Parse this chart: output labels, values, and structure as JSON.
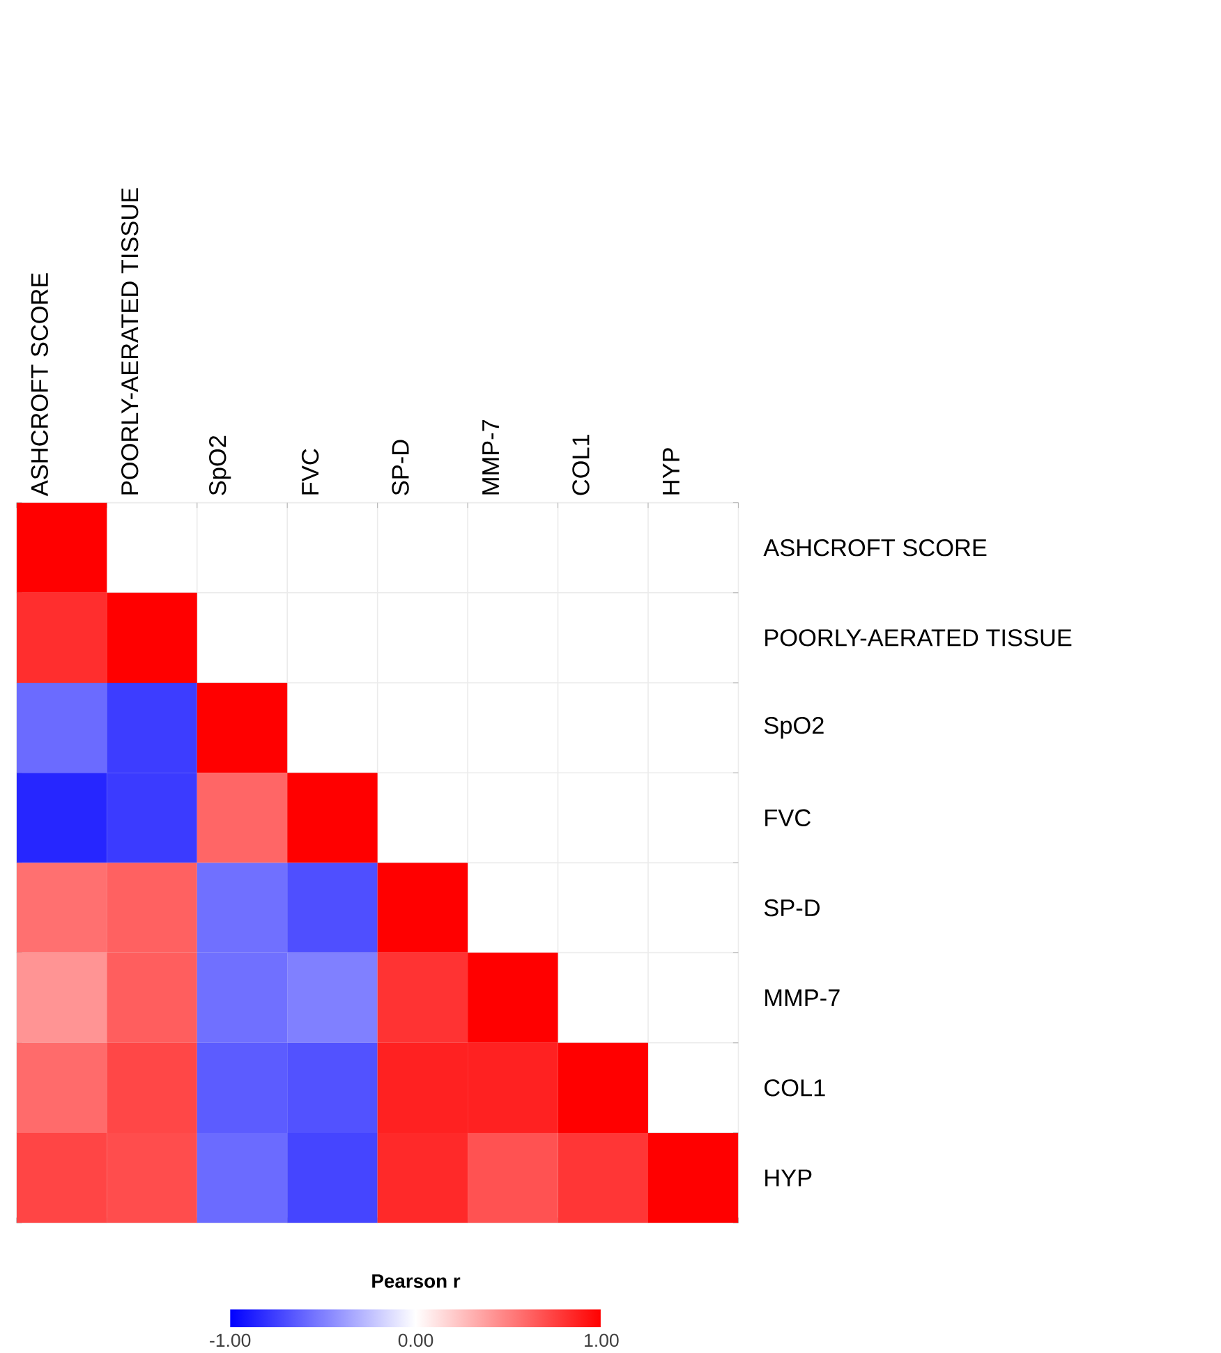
{
  "chart_data": {
    "type": "heatmap",
    "categories": [
      "ASHCROFT SCORE",
      "POORLY-AERATED TISSUE",
      "SpO2",
      "FVC",
      "SP-D",
      "MMP-7",
      "COL1",
      "HYP"
    ],
    "y_categories": [
      "ASHCROFT SCORE",
      "POORLY-AERATED TISSUE",
      "SpO2",
      "FVC",
      "SP-D",
      "MMP-7",
      "COL1",
      "HYP"
    ],
    "cells": [
      [
        1,
        null,
        null,
        null,
        null,
        null,
        null,
        null
      ],
      [
        0.82,
        1,
        null,
        null,
        null,
        null,
        null,
        null
      ],
      [
        -0.58,
        -0.76,
        1,
        null,
        null,
        null,
        null,
        null
      ],
      [
        -0.85,
        -0.77,
        0.6,
        1,
        null,
        null,
        null,
        null
      ],
      [
        0.56,
        0.62,
        -0.56,
        -0.69,
        1,
        null,
        null,
        null
      ],
      [
        0.42,
        0.63,
        -0.56,
        -0.5,
        0.8,
        1,
        null,
        null
      ],
      [
        0.58,
        0.72,
        -0.64,
        -0.68,
        0.87,
        0.87,
        1,
        null
      ],
      [
        0.73,
        0.7,
        -0.58,
        -0.73,
        0.84,
        0.68,
        0.79,
        1
      ]
    ],
    "clim": [
      -1,
      1
    ],
    "cticks": [
      {
        "value": -1,
        "label": "-1.00"
      },
      {
        "value": 0,
        "label": "0.00"
      },
      {
        "value": 1,
        "label": "1.00"
      }
    ],
    "clabel": "Pearson r",
    "grid": true
  }
}
